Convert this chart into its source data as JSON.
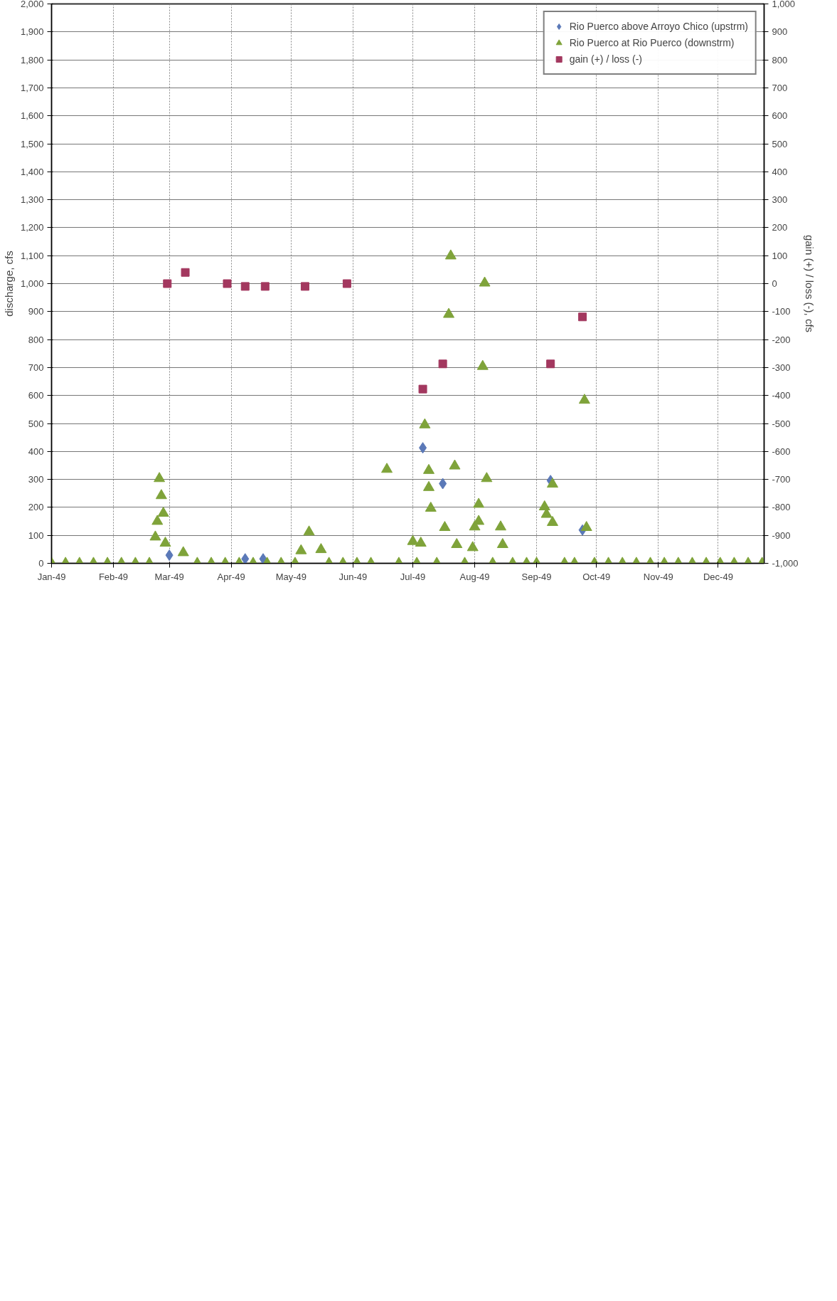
{
  "chart_data": {
    "type": "scatter",
    "ylabel": "discharge, cfs",
    "y2label": "gain (+) / loss (-), cfs",
    "xlim": [
      "1949-01-01",
      "1949-12-24"
    ],
    "xticks": [
      {
        "value": "1949-01-01",
        "label": "Jan-49"
      },
      {
        "value": "1949-02-01",
        "label": "Feb-49"
      },
      {
        "value": "1949-03-01",
        "label": "Mar-49"
      },
      {
        "value": "1949-04-01",
        "label": "Apr-49"
      },
      {
        "value": "1949-05-01",
        "label": "May-49"
      },
      {
        "value": "1949-06-01",
        "label": "Jun-49"
      },
      {
        "value": "1949-07-01",
        "label": "Jul-49"
      },
      {
        "value": "1949-08-01",
        "label": "Aug-49"
      },
      {
        "value": "1949-09-01",
        "label": "Sep-49"
      },
      {
        "value": "1949-10-01",
        "label": "Oct-49"
      },
      {
        "value": "1949-11-01",
        "label": "Nov-49"
      },
      {
        "value": "1949-12-01",
        "label": "Dec-49"
      }
    ],
    "ylim": [
      0,
      2000
    ],
    "yticks": [
      0,
      100,
      200,
      300,
      400,
      500,
      600,
      700,
      800,
      900,
      {
        "value": 1000,
        "label": "1,000"
      },
      {
        "value": 1100,
        "label": "1,100"
      },
      {
        "value": 1200,
        "label": "1,200"
      },
      {
        "value": 1300,
        "label": "1,300"
      },
      {
        "value": 1400,
        "label": "1,400"
      },
      {
        "value": 1500,
        "label": "1,500"
      },
      {
        "value": 1600,
        "label": "1,600"
      },
      {
        "value": 1700,
        "label": "1,700"
      },
      {
        "value": 1800,
        "label": "1,800"
      },
      {
        "value": 1900,
        "label": "1,900"
      },
      {
        "value": 2000,
        "label": "2,000"
      }
    ],
    "y2lim": [
      -1000,
      1000
    ],
    "y2ticks": [
      {
        "value": -1000,
        "label": "-1,000"
      },
      -900,
      -800,
      -700,
      -600,
      -500,
      -400,
      -300,
      -200,
      -100,
      0,
      100,
      200,
      300,
      400,
      500,
      600,
      700,
      800,
      900,
      {
        "value": 1000,
        "label": "1,000"
      }
    ],
    "grid": true,
    "legend": "top right",
    "series": [
      {
        "name": "Rio Puerco above Arroyo Chico (upstrm)",
        "color": "#5b79b8",
        "marker": "diamond",
        "x": [
          "1949-03-01",
          "1949-04-08",
          "1949-04-17",
          "1949-07-06",
          "1949-07-16",
          "1949-09-08",
          "1949-09-24"
        ],
        "values": [
          29,
          16,
          16,
          413,
          285,
          296,
          119
        ]
      },
      {
        "name": "Rio Puerco at Rio Puerco (downstrm)",
        "color": "#7fa33a",
        "marker": "triangle",
        "x": [
          "1949-01-01",
          "1949-01-08",
          "1949-01-15",
          "1949-01-22",
          "1949-01-29",
          "1949-02-05",
          "1949-02-12",
          "1949-02-19",
          "1949-02-22",
          "1949-02-23",
          "1949-02-24",
          "1949-02-25",
          "1949-02-26",
          "1949-02-27",
          "1949-03-08",
          "1949-03-15",
          "1949-03-22",
          "1949-03-29",
          "1949-04-05",
          "1949-04-12",
          "1949-04-19",
          "1949-04-26",
          "1949-05-03",
          "1949-05-06",
          "1949-05-10",
          "1949-05-16",
          "1949-05-20",
          "1949-05-27",
          "1949-06-03",
          "1949-06-10",
          "1949-06-18",
          "1949-06-24",
          "1949-07-01",
          "1949-07-03",
          "1949-07-05",
          "1949-07-07",
          "1949-07-09",
          "1949-07-09",
          "1949-07-10",
          "1949-07-13",
          "1949-07-17",
          "1949-07-19",
          "1949-07-20",
          "1949-07-22",
          "1949-07-23",
          "1949-07-27",
          "1949-07-31",
          "1949-08-01",
          "1949-08-03",
          "1949-08-03",
          "1949-08-05",
          "1949-08-06",
          "1949-08-07",
          "1949-08-10",
          "1949-08-14",
          "1949-08-15",
          "1949-08-20",
          "1949-08-27",
          "1949-09-01",
          "1949-09-05",
          "1949-09-06",
          "1949-09-09",
          "1949-09-09",
          "1949-09-15",
          "1949-09-20",
          "1949-09-25",
          "1949-09-26",
          "1949-09-30",
          "1949-10-07",
          "1949-10-14",
          "1949-10-21",
          "1949-10-28",
          "1949-11-04",
          "1949-11-11",
          "1949-11-18",
          "1949-11-25",
          "1949-12-02",
          "1949-12-09",
          "1949-12-16",
          "1949-12-23"
        ],
        "values": [
          0,
          0,
          0,
          0,
          0,
          0,
          0,
          0,
          94,
          150,
          303,
          242,
          179,
          72,
          38,
          0,
          0,
          0,
          0,
          0,
          0,
          0,
          0,
          45,
          112,
          49,
          0,
          0,
          0,
          0,
          336,
          0,
          78,
          0,
          72,
          495,
          332,
          271,
          197,
          0,
          128,
          890,
          1099,
          348,
          67,
          0,
          56,
          130,
          211,
          150,
          704,
          1002,
          303,
          0,
          130,
          67,
          0,
          0,
          0,
          202,
          175,
          283,
          146,
          0,
          0,
          583,
          128,
          0,
          0,
          0,
          0,
          0,
          0,
          0,
          0,
          0,
          0,
          0,
          0,
          0
        ]
      },
      {
        "name": "gain (+) / loss (-)",
        "color": "#a3385f",
        "marker": "square",
        "axis": "y2",
        "x": [
          "1949-02-28",
          "1949-03-09",
          "1949-03-30",
          "1949-04-08",
          "1949-04-18",
          "1949-05-08",
          "1949-05-29",
          "1949-07-06",
          "1949-07-16",
          "1949-09-08",
          "1949-09-24"
        ],
        "values": [
          0,
          40,
          0,
          -10,
          -10,
          -10,
          0,
          -377,
          -287,
          -287,
          -119
        ]
      }
    ]
  }
}
